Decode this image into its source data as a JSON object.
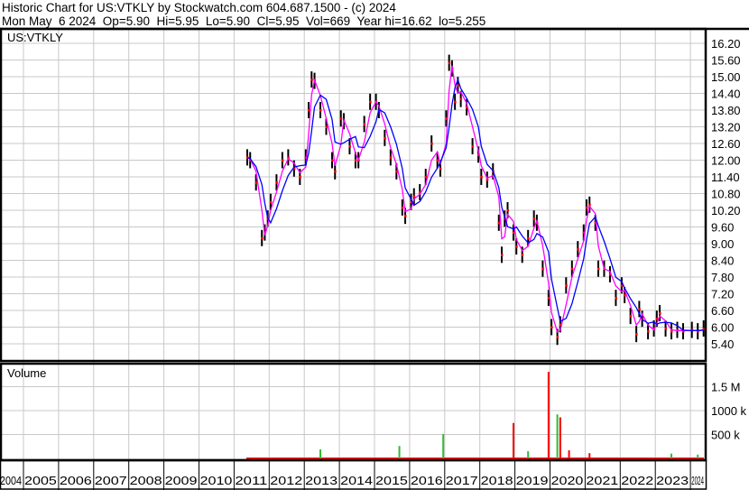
{
  "header": {
    "title": "Historic Chart for US:VTKLY by Stockwatch.com 604.687.1500 - (c) 2024",
    "quote": "Mon May  6 2024  Op=5.90  Hi=5.95  Lo=5.90  Cl=5.95  Vol=669  Year hi=16.62  lo=5.255"
  },
  "colors": {
    "price_bar": "#000000",
    "close_marker": "#ff0000",
    "ma_short": "#ff00ff",
    "ma_long": "#0000ff",
    "volume_up": "#33bb33",
    "volume_down": "#ff0000",
    "grid": "#c8c8c8"
  },
  "chart_data": [
    {
      "type": "line",
      "label": "US:VTKLY",
      "y_axis_side": "right",
      "ylim": [
        5.2,
        16.5
      ],
      "yticks": [
        "16.20",
        "15.60",
        "15.00",
        "14.40",
        "13.80",
        "13.20",
        "12.60",
        "12.00",
        "11.40",
        "10.80",
        "10.20",
        "9.60",
        "9.00",
        "8.40",
        "7.80",
        "7.20",
        "6.60",
        "6.00",
        "5.40"
      ],
      "grid": true,
      "series": [
        {
          "x": [
            "2011-05",
            "2011-06",
            "2011-08",
            "2011-10",
            "2011-11",
            "2011-12",
            "2012-01",
            "2012-03",
            "2012-05",
            "2012-07",
            "2012-09",
            "2012-11",
            "2013-01",
            "2013-02",
            "2013-03",
            "2013-04",
            "2013-06",
            "2013-08",
            "2013-10",
            "2013-11",
            "2014-01",
            "2014-02",
            "2014-04",
            "2014-06",
            "2014-07",
            "2014-09",
            "2014-11",
            "2015-01",
            "2015-02",
            "2015-04",
            "2015-06",
            "2015-08",
            "2015-10",
            "2015-11",
            "2016-01",
            "2016-02",
            "2016-04",
            "2016-06",
            "2016-08",
            "2016-10",
            "2016-11",
            "2017-01",
            "2017-02",
            "2017-03",
            "2017-04",
            "2017-05",
            "2017-06",
            "2017-08",
            "2017-10",
            "2017-12",
            "2018-01",
            "2018-03",
            "2018-05",
            "2018-07",
            "2018-08",
            "2018-09",
            "2018-10",
            "2018-12",
            "2019-01",
            "2019-03",
            "2019-05",
            "2019-07",
            "2019-08",
            "2019-10",
            "2019-12",
            "2020-01",
            "2020-03",
            "2020-04",
            "2020-06",
            "2020-08",
            "2020-10",
            "2020-12",
            "2021-01",
            "2021-02",
            "2021-04",
            "2021-05",
            "2021-07",
            "2021-09",
            "2021-11",
            "2022-01",
            "2022-02",
            "2022-04",
            "2022-06",
            "2022-07",
            "2022-08",
            "2022-10",
            "2022-12",
            "2023-01",
            "2023-02",
            "2023-04",
            "2023-06",
            "2023-08",
            "2023-10",
            "2024-01",
            "2024-03",
            "2024-05"
          ],
          "y": [
            12.1,
            12.0,
            11.2,
            9.2,
            9.4,
            9.9,
            10.5,
            11.2,
            12.0,
            12.1,
            11.7,
            11.4,
            12.1,
            13.8,
            14.9,
            14.85,
            13.8,
            13.2,
            12.0,
            11.6,
            13.5,
            13.4,
            12.5,
            12.0,
            12.0,
            13.3,
            14.1,
            14.1,
            13.8,
            12.8,
            12.1,
            11.6,
            10.3,
            10.0,
            10.5,
            10.7,
            10.85,
            11.4,
            12.6,
            12.0,
            11.7,
            13.5,
            15.5,
            15.3,
            14.1,
            14.7,
            14.2,
            13.9,
            12.5,
            12.2,
            11.4,
            11.3,
            11.6,
            9.75,
            8.6,
            9.9,
            10.2,
            9.4,
            8.9,
            8.6,
            9.2,
            9.9,
            9.75,
            8.1,
            7.05,
            6.0,
            5.65,
            6.1,
            7.5,
            8.1,
            8.8,
            9.4,
            10.3,
            10.4,
            9.75,
            8.1,
            8.1,
            7.9,
            7.05,
            7.5,
            7.15,
            6.4,
            5.75,
            6.65,
            6.3,
            5.85,
            5.95,
            6.3,
            6.5,
            5.95,
            5.85,
            5.9,
            5.85,
            5.9,
            5.85,
            5.95
          ]
        }
      ]
    },
    {
      "type": "bar",
      "label": "Volume",
      "yticks": [
        "1.5 M",
        "1000 k",
        "500 k"
      ],
      "ylim": [
        0,
        2000000
      ],
      "bars": [
        {
          "x": "2013-06",
          "volume": 190000,
          "direction": "up"
        },
        {
          "x": "2015-09",
          "volume": 260000,
          "direction": "up"
        },
        {
          "x": "2016-12",
          "volume": 510000,
          "direction": "up"
        },
        {
          "x": "2018-12",
          "volume": 740000,
          "direction": "down"
        },
        {
          "x": "2019-05",
          "volume": 150000,
          "direction": "up"
        },
        {
          "x": "2019-12",
          "volume": 1810000,
          "direction": "down"
        },
        {
          "x": "2020-03",
          "volume": 920000,
          "direction": "up"
        },
        {
          "x": "2020-04",
          "volume": 860000,
          "direction": "down"
        },
        {
          "x": "2020-07",
          "volume": 170000,
          "direction": "down"
        },
        {
          "x": "2021-02",
          "volume": 110000,
          "direction": "down"
        },
        {
          "x": "2023-06",
          "volume": 100000,
          "direction": "up"
        },
        {
          "x": "2024-03",
          "volume": 80000,
          "direction": "up"
        }
      ]
    }
  ],
  "x_axis": {
    "years": [
      "2004",
      "2005",
      "2006",
      "2007",
      "2008",
      "2009",
      "2010",
      "2011",
      "2012",
      "2013",
      "2014",
      "2015",
      "2016",
      "2017",
      "2018",
      "2019",
      "2020",
      "2021",
      "2022",
      "2023",
      "2024"
    ]
  }
}
